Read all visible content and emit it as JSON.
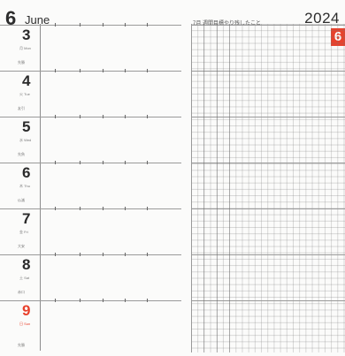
{
  "header": {
    "month_number": "6",
    "month_name": "June",
    "year": "2024",
    "month_tab": "6",
    "note_heading": "7月 週間目標やり残したこと"
  },
  "days": [
    {
      "day": "3",
      "sub": "月 Mon",
      "top": "",
      "sunday": false
    },
    {
      "day": "4",
      "sub": "火 Tue",
      "top": "先勝",
      "sunday": false
    },
    {
      "day": "5",
      "sub": "水 Wed",
      "top": "友引",
      "sunday": false
    },
    {
      "day": "6",
      "sub": "木 Thu",
      "top": "先負",
      "sunday": false
    },
    {
      "day": "7",
      "sub": "金 Fri",
      "top": "仏滅",
      "sunday": false
    },
    {
      "day": "8",
      "sub": "土 Sat",
      "top": "大安",
      "sunday": false
    },
    {
      "day": "9",
      "sub": "日 Sun",
      "top": "赤口",
      "sunday": true
    }
  ],
  "footer_note": "先勝",
  "colors": {
    "accent": "#e8412c",
    "rule": "#9a9a9a",
    "text": "#2a2a2a"
  }
}
